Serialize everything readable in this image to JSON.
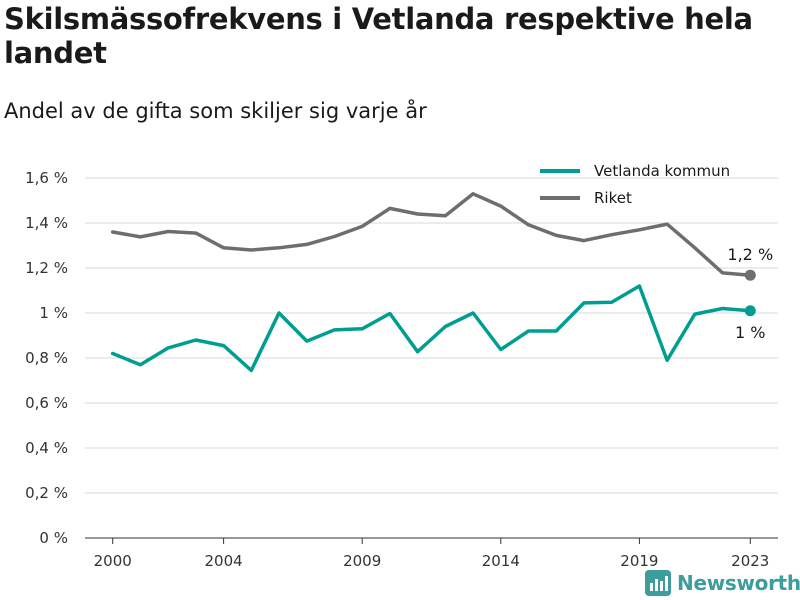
{
  "header": {
    "title": "Skilsmässofrekvens i Vetlanda respektive hela landet",
    "subtitle": "Andel av de gifta som skiljer sig varje år"
  },
  "brand": {
    "name": "Newsworthy",
    "icon": "newsworthy-logo-icon",
    "color": "#3d9c9c"
  },
  "chart_data": {
    "type": "line",
    "title": "Skilsmässofrekvens i Vetlanda respektive hela landet",
    "subtitle": "Andel av de gifta som skiljer sig varje år",
    "xlabel": "",
    "ylabel": "",
    "x": [
      2000,
      2001,
      2002,
      2003,
      2004,
      2005,
      2006,
      2007,
      2008,
      2009,
      2010,
      2011,
      2012,
      2013,
      2014,
      2015,
      2016,
      2017,
      2018,
      2019,
      2020,
      2021,
      2022,
      2023
    ],
    "x_ticks": [
      2000,
      2004,
      2009,
      2014,
      2019,
      2023
    ],
    "x_tick_labels": [
      "2000",
      "2004",
      "2009",
      "2014",
      "2019",
      "2023"
    ],
    "xlim": [
      1999,
      2024
    ],
    "ylim": [
      0,
      1.6
    ],
    "y_ticks": [
      0,
      0.2,
      0.4,
      0.6,
      0.8,
      1.0,
      1.2,
      1.4,
      1.6
    ],
    "y_tick_labels": [
      "0 %",
      "0,2 %",
      "0,4 %",
      "0,6 %",
      "0,8 %",
      "1 %",
      "1,2 %",
      "1,4 %",
      "1,6 %"
    ],
    "grid": "horizontal",
    "legend_position": "top-right",
    "series": [
      {
        "name": "Vetlanda kommun",
        "color": "#009e91",
        "values": [
          0.82,
          0.77,
          0.845,
          0.88,
          0.855,
          0.745,
          1.0,
          0.875,
          0.925,
          0.93,
          0.998,
          0.828,
          0.94,
          1.0,
          0.838,
          0.92,
          0.92,
          1.045,
          1.048,
          1.12,
          0.79,
          0.995,
          1.02,
          1.01
        ],
        "end_label": "1 %"
      },
      {
        "name": "Riket",
        "color": "#6e6d71",
        "values": [
          1.36,
          1.338,
          1.362,
          1.355,
          1.29,
          1.28,
          1.29,
          1.305,
          1.34,
          1.385,
          1.465,
          1.44,
          1.432,
          1.53,
          1.475,
          1.392,
          1.345,
          1.322,
          1.348,
          1.37,
          1.395,
          1.29,
          1.178,
          1.168
        ],
        "end_label": "1,2 %"
      }
    ]
  }
}
